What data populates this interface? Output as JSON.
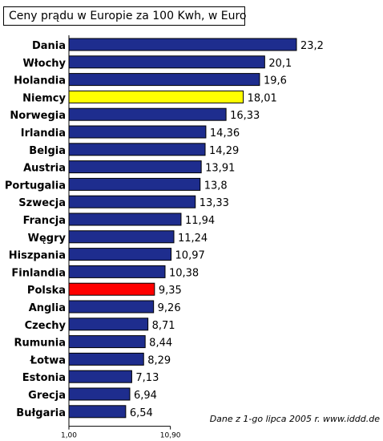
{
  "chart_data": {
    "type": "bar",
    "orientation": "horizontal",
    "title": "Ceny prądu w Europie za 100 Kwh, w Euro",
    "categories": [
      "Dania",
      "Włochy",
      "Holandia",
      "Niemcy",
      "Norwegia",
      "Irlandia",
      "Belgia",
      "Austria",
      "Portugalia",
      "Szwecja",
      "Francja",
      "Węgry",
      "Hiszpania",
      "Finlandia",
      "Polska",
      "Anglia",
      "Czechy",
      "Rumunia",
      "Łotwa",
      "Estonia",
      "Grecja",
      "Bułgaria"
    ],
    "values": [
      23.2,
      20.1,
      19.6,
      18.01,
      16.33,
      14.36,
      14.29,
      13.91,
      13.8,
      13.33,
      11.94,
      11.24,
      10.97,
      10.38,
      9.35,
      9.26,
      8.71,
      8.44,
      8.29,
      7.13,
      6.94,
      6.54
    ],
    "value_labels": [
      "23,2",
      "20,1",
      "19,6",
      "18,01",
      "16,33",
      "14,36",
      "14,29",
      "13,91",
      "13,8",
      "13,33",
      "11,94",
      "11,24",
      "10,97",
      "10,38",
      "9,35",
      "9,26",
      "8,71",
      "8,44",
      "8,29",
      "7,13",
      "6,94",
      "6,54"
    ],
    "xlim": [
      1.0,
      23.2
    ],
    "x_tick_labels": [
      "1,00",
      "10,90"
    ],
    "x_tick_values": [
      1.0,
      10.9
    ],
    "colors": {
      "default": "#1e2d8e",
      "highlight": {
        "Niemcy": "#ffff00",
        "Polska": "#ff0000"
      },
      "outline": "#000000"
    },
    "legend": "none",
    "grid": false
  },
  "note": "Dane z 1-go lipca 2005 r.  www.iddd.de"
}
